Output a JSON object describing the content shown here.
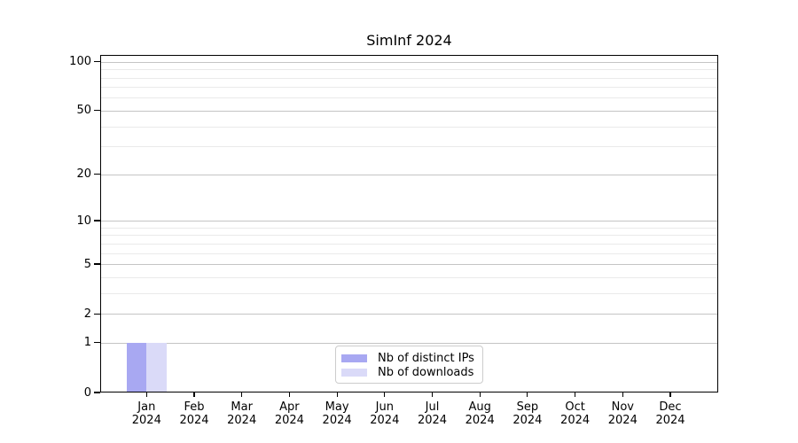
{
  "figure": {
    "background": "#ffffff",
    "text_color": "#000000"
  },
  "chart_data": {
    "type": "bar",
    "title": "SimInf 2024",
    "x_axis": {
      "months": [
        "Jan",
        "Feb",
        "Mar",
        "Apr",
        "May",
        "Jun",
        "Jul",
        "Aug",
        "Sep",
        "Oct",
        "Nov",
        "Dec"
      ],
      "year": "2024"
    },
    "series": [
      {
        "name": "Nb of distinct IPs",
        "color": "#a8a8f2",
        "values": [
          1,
          0,
          0,
          0,
          0,
          0,
          0,
          0,
          0,
          0,
          0,
          0
        ]
      },
      {
        "name": "Nb of downloads",
        "color": "#dadaf8",
        "values": [
          1,
          0,
          0,
          0,
          0,
          0,
          0,
          0,
          0,
          0,
          0,
          0
        ]
      }
    ],
    "y_axis": {
      "scale": "log1p",
      "ticks": [
        0,
        1,
        2,
        5,
        10,
        20,
        50,
        100
      ],
      "minor_ticks": [
        3,
        4,
        6,
        7,
        8,
        9,
        30,
        40,
        60,
        70,
        80,
        90
      ],
      "limit_top": 110
    },
    "grid": {
      "axis": "y",
      "major_color": "#c4c4c4",
      "minor_color": "#eaeaea"
    },
    "legend": {
      "position": "inside-bottom-center",
      "entries": [
        "Nb of distinct IPs",
        "Nb of downloads"
      ],
      "border_color": "#cccccc",
      "background": "#ffffff"
    }
  }
}
